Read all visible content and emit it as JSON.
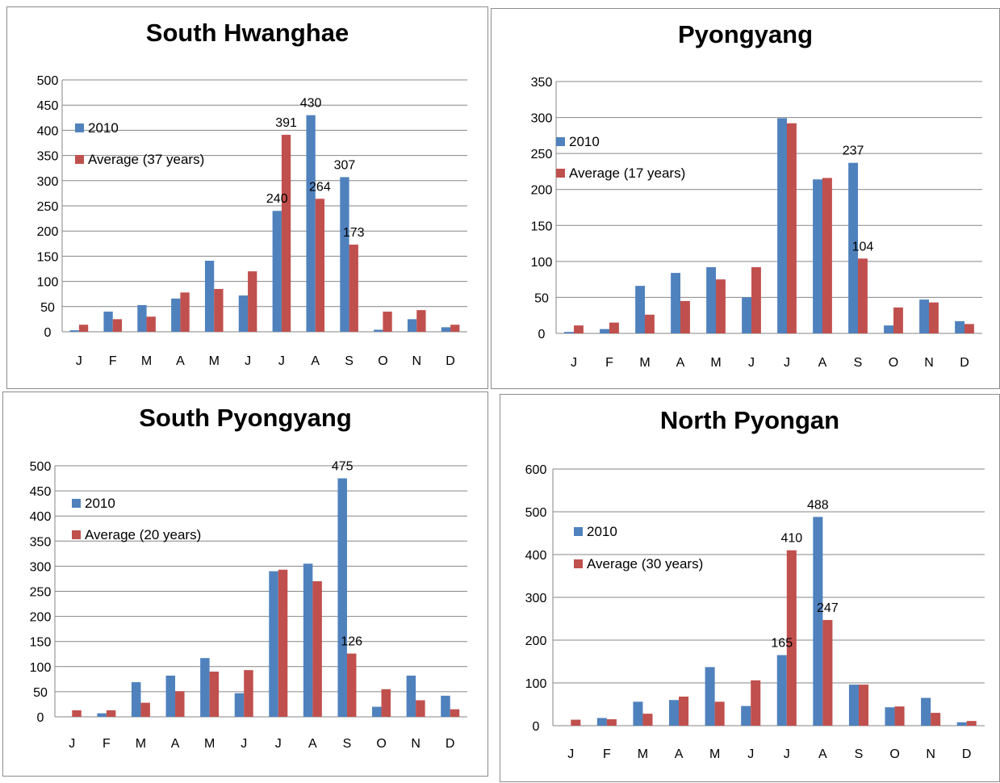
{
  "colors": {
    "series_2010": "#4f81bd",
    "series_avg": "#c0504d",
    "grid": "#868686"
  },
  "chart_data": [
    {
      "type": "bar",
      "title": "South Hwanghae",
      "categories": [
        "J",
        "F",
        "M",
        "A",
        "M",
        "J",
        "J",
        "A",
        "S",
        "O",
        "N",
        "D"
      ],
      "ylim": [
        0,
        500
      ],
      "ytick_step": 50,
      "grid": true,
      "legend": "top-left",
      "series": [
        {
          "name": "2010",
          "values": [
            3,
            40,
            53,
            66,
            141,
            72,
            240,
            430,
            307,
            4,
            25,
            9
          ]
        },
        {
          "name": "Average (37 years)",
          "values": [
            14,
            25,
            30,
            78,
            85,
            120,
            391,
            264,
            173,
            40,
            43,
            14
          ]
        }
      ],
      "data_labels": [
        {
          "series": 0,
          "index": 6,
          "text": "240"
        },
        {
          "series": 1,
          "index": 6,
          "text": "391"
        },
        {
          "series": 0,
          "index": 7,
          "text": "430"
        },
        {
          "series": 1,
          "index": 7,
          "text": "264"
        },
        {
          "series": 0,
          "index": 8,
          "text": "307"
        },
        {
          "series": 1,
          "index": 8,
          "text": "173"
        }
      ]
    },
    {
      "type": "bar",
      "title": "Pyongyang",
      "categories": [
        "J",
        "F",
        "M",
        "A",
        "M",
        "J",
        "J",
        "A",
        "S",
        "O",
        "N",
        "D"
      ],
      "ylim": [
        0,
        350
      ],
      "ytick_step": 50,
      "grid": true,
      "legend": "top-left",
      "series": [
        {
          "name": "2010",
          "values": [
            2,
            6,
            66,
            84,
            92,
            50,
            299,
            214,
            237,
            11,
            47,
            17
          ]
        },
        {
          "name": "Average (17 years)",
          "values": [
            11,
            15,
            26,
            45,
            75,
            92,
            292,
            216,
            104,
            36,
            43,
            13
          ]
        }
      ],
      "data_labels": [
        {
          "series": 0,
          "index": 8,
          "text": "237"
        },
        {
          "series": 1,
          "index": 8,
          "text": "104"
        }
      ]
    },
    {
      "type": "bar",
      "title": "South Pyongyang",
      "categories": [
        "J",
        "F",
        "M",
        "A",
        "M",
        "J",
        "J",
        "A",
        "S",
        "O",
        "N",
        "D"
      ],
      "ylim": [
        0,
        500
      ],
      "ytick_step": 50,
      "grid": true,
      "legend": "top-left",
      "series": [
        {
          "name": "2010",
          "values": [
            0,
            7,
            69,
            82,
            117,
            47,
            290,
            305,
            475,
            20,
            82,
            42
          ]
        },
        {
          "name": "Average (20 years)",
          "values": [
            13,
            13,
            28,
            51,
            90,
            93,
            293,
            270,
            126,
            55,
            33,
            15
          ]
        }
      ],
      "data_labels": [
        {
          "series": 0,
          "index": 8,
          "text": "475"
        },
        {
          "series": 1,
          "index": 8,
          "text": "126"
        }
      ]
    },
    {
      "type": "bar",
      "title": "North Pyongan",
      "categories": [
        "J",
        "F",
        "M",
        "A",
        "M",
        "J",
        "J",
        "A",
        "S",
        "O",
        "N",
        "D"
      ],
      "ylim": [
        0,
        600
      ],
      "ytick_step": 100,
      "grid": true,
      "legend": "top-left",
      "series": [
        {
          "name": "2010",
          "values": [
            0,
            18,
            56,
            60,
            137,
            46,
            165,
            488,
            96,
            43,
            65,
            8
          ]
        },
        {
          "name": "Average (30 years)",
          "values": [
            14,
            15,
            28,
            68,
            56,
            106,
            410,
            247,
            96,
            45,
            30,
            11
          ]
        }
      ],
      "data_labels": [
        {
          "series": 0,
          "index": 6,
          "text": "165"
        },
        {
          "series": 1,
          "index": 6,
          "text": "410"
        },
        {
          "series": 0,
          "index": 7,
          "text": "488"
        },
        {
          "series": 1,
          "index": 7,
          "text": "247"
        }
      ]
    }
  ]
}
